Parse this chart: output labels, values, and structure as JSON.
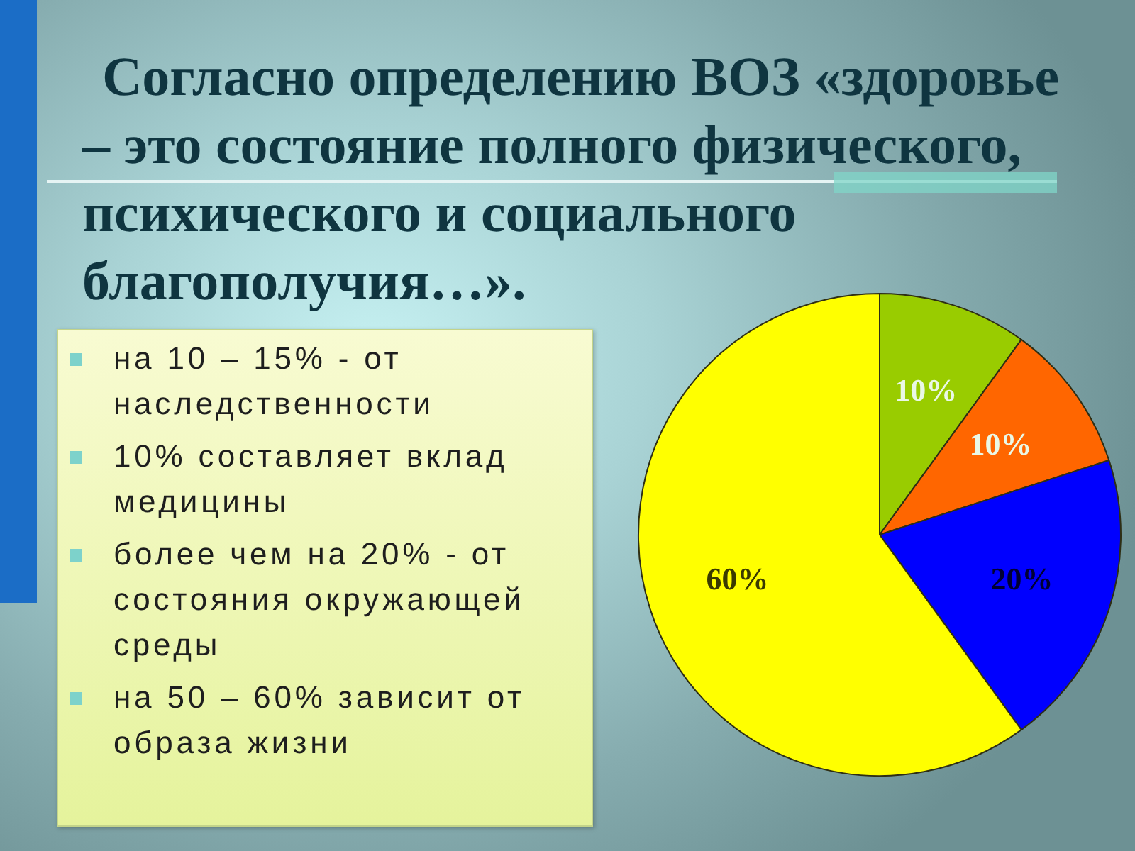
{
  "chart_data": {
    "type": "pie",
    "title": "Согласно определению ВОЗ «здоровье – это состояние полного физического, психического и социального благополучия…».",
    "categories": [
      null,
      null,
      null,
      null
    ],
    "values": [
      10,
      10,
      20,
      60
    ],
    "colors": [
      "#99cc00",
      "#ff6600",
      "#0000ff",
      "#ffff00"
    ],
    "value_labels": [
      "10%",
      "10%",
      "20%",
      "60%"
    ],
    "annotations": [
      "на 10 – 15% - от наследственности",
      "10% составляет вклад медицины",
      "более чем на 20% - от состояния окружающей среды",
      "на 50 – 60% зависит от образа жизни"
    ]
  }
}
